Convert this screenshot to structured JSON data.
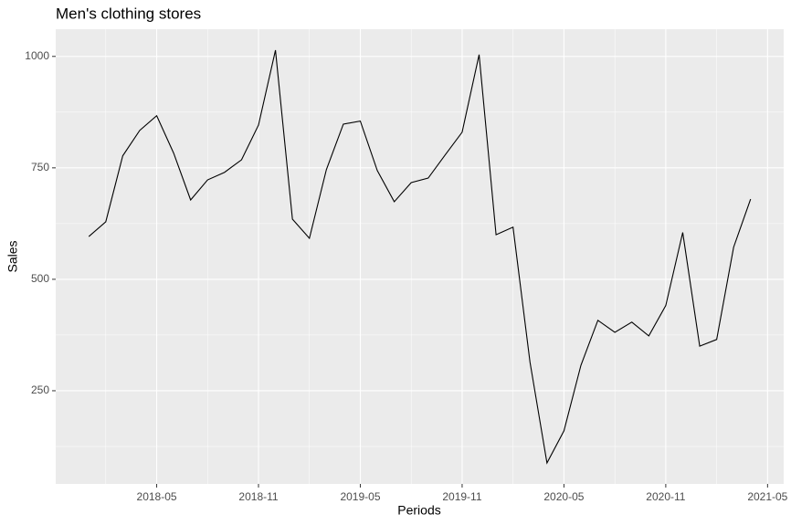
{
  "chart_data": {
    "type": "line",
    "title": "Men's clothing stores",
    "x_label": "Periods",
    "y_label": "Sales",
    "x": [
      "2018-01",
      "2018-02",
      "2018-03",
      "2018-04",
      "2018-05",
      "2018-06",
      "2018-07",
      "2018-08",
      "2018-09",
      "2018-10",
      "2018-11",
      "2018-12",
      "2019-01",
      "2019-02",
      "2019-03",
      "2019-04",
      "2019-05",
      "2019-06",
      "2019-07",
      "2019-08",
      "2019-09",
      "2019-10",
      "2019-11",
      "2019-12",
      "2020-01",
      "2020-02",
      "2020-03",
      "2020-04",
      "2020-05",
      "2020-06",
      "2020-07",
      "2020-08",
      "2020-09",
      "2020-10",
      "2020-11",
      "2020-12",
      "2021-01",
      "2021-02",
      "2021-03",
      "2021-04"
    ],
    "values": [
      596,
      629,
      777,
      834,
      867,
      783,
      678,
      723,
      740,
      768,
      846,
      1014,
      635,
      592,
      746,
      848,
      855,
      744,
      674,
      717,
      727,
      779,
      830,
      1004,
      600,
      617,
      314,
      88,
      160,
      307,
      408,
      381,
      404,
      373,
      441,
      605,
      350,
      365,
      572,
      680
    ],
    "color": "#000000",
    "xticks": [
      "2018-05",
      "2018-11",
      "2019-05",
      "2019-11",
      "2020-05",
      "2020-11",
      "2021-05"
    ],
    "ylim": [
      41,
      1061
    ],
    "yticks": [
      250,
      500,
      750,
      1000
    ],
    "grid": true
  }
}
